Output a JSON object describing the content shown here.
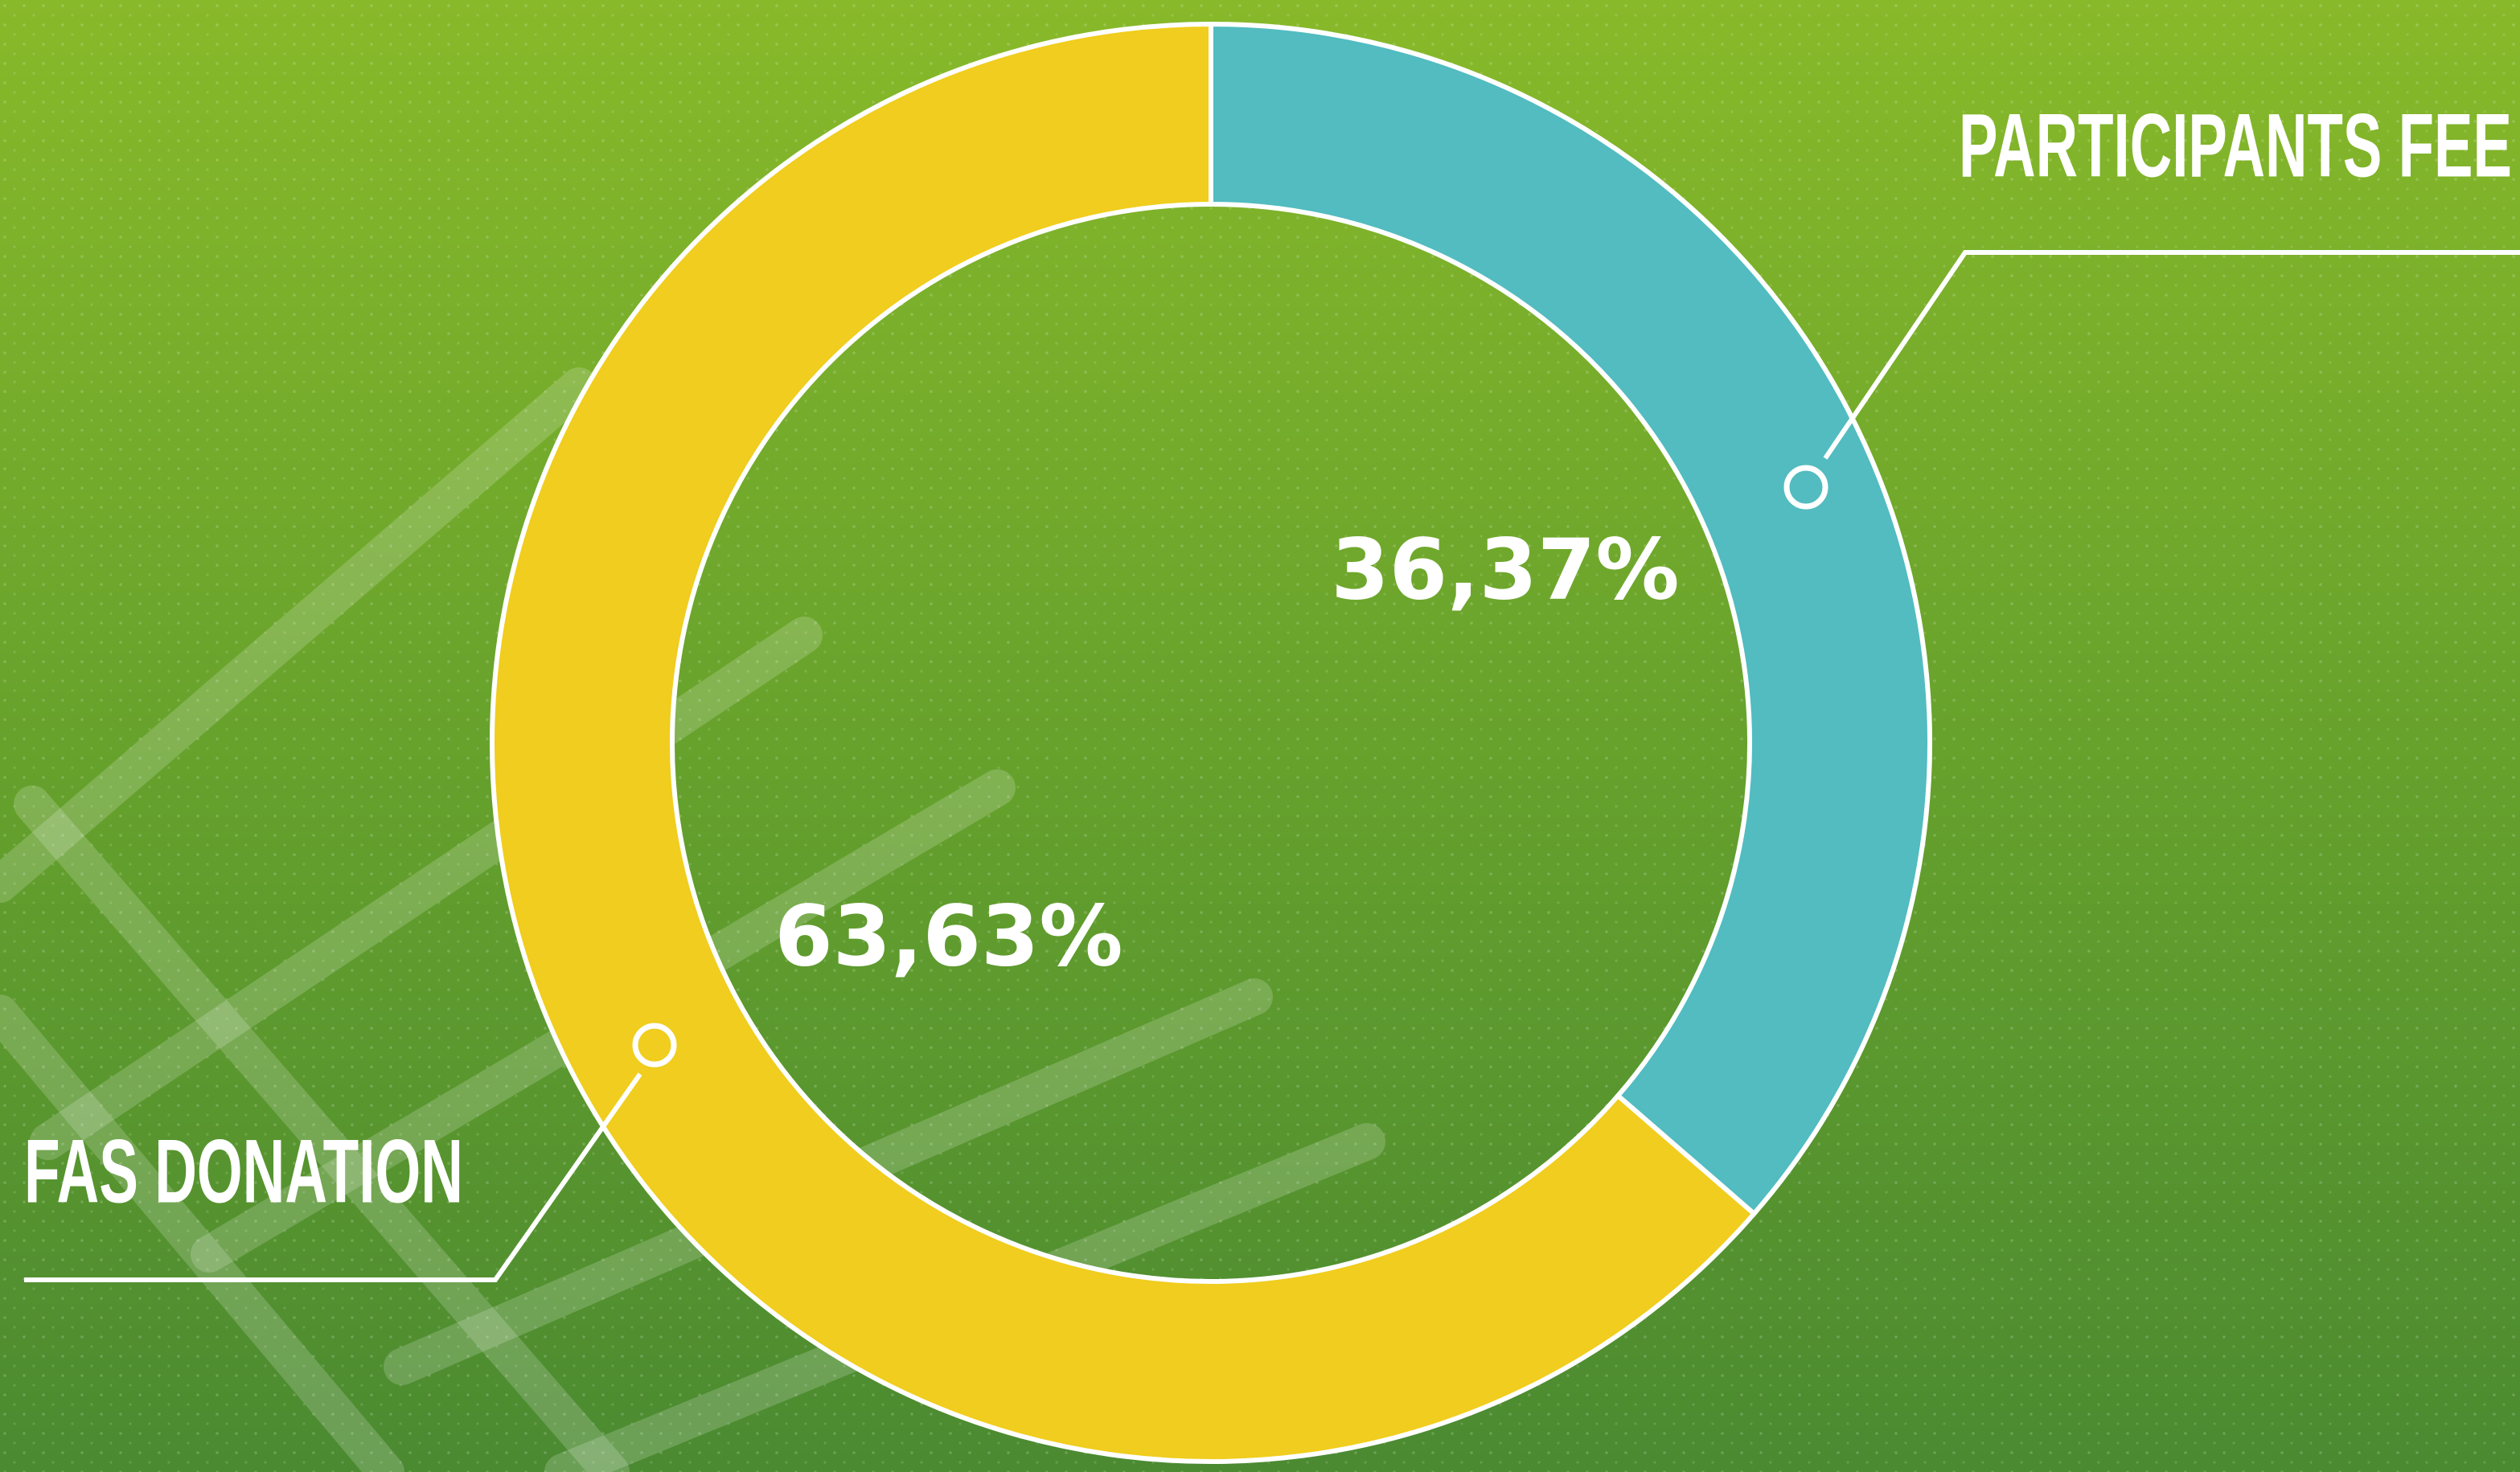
{
  "chart_data": {
    "type": "donut",
    "categories": [
      "PARTICIPANTS FEE",
      "FAS DONATION"
    ],
    "values": [
      36.37,
      63.63
    ],
    "value_labels": [
      "36,37%",
      "63,63%"
    ],
    "colors": [
      "#52bcc0",
      "#f0cd1e"
    ]
  }
}
